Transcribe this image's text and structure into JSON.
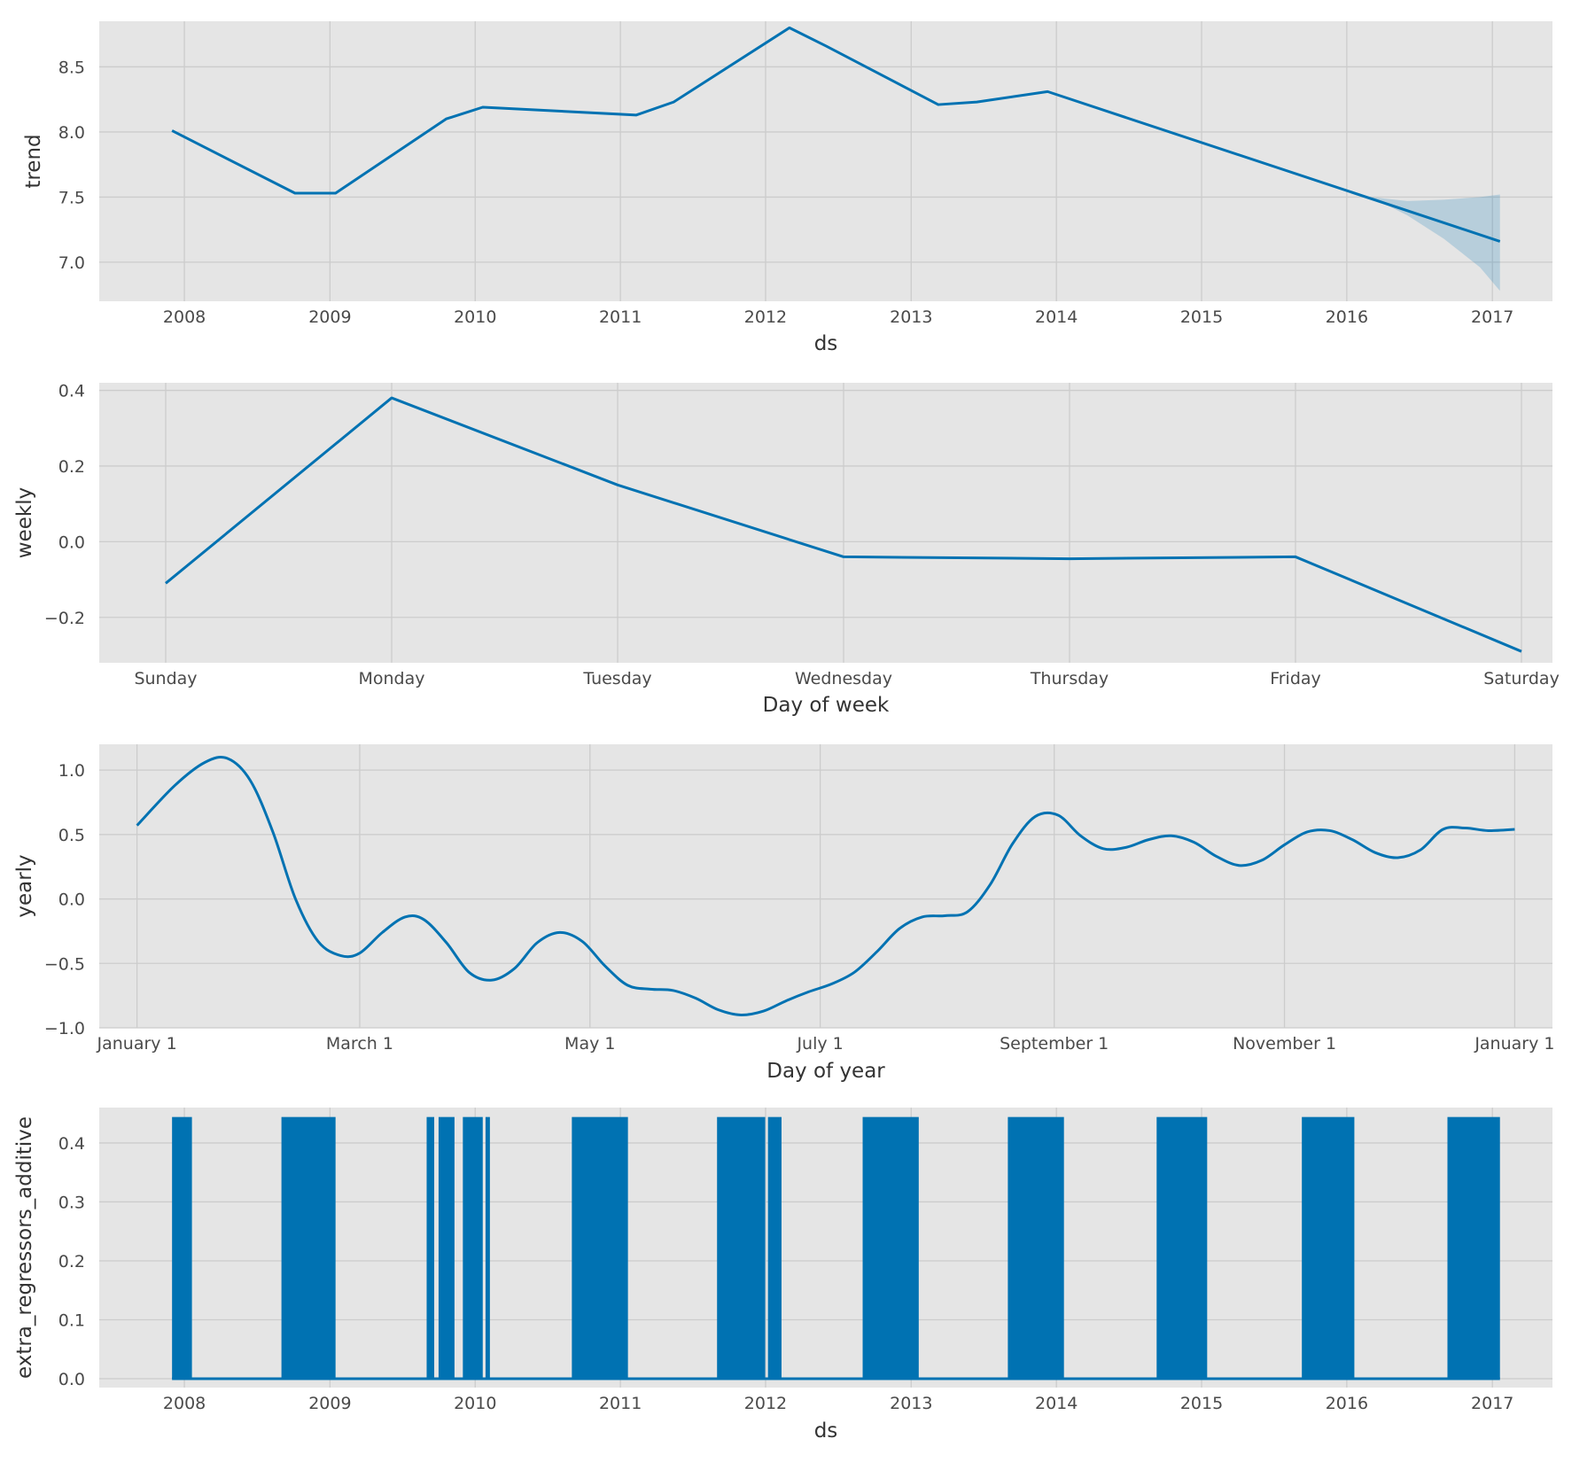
{
  "colors": {
    "panel_bg": "#e5e5e5",
    "grid": "#cccccc",
    "line": "#0072b2",
    "band": "#0072b2",
    "text": "#4a4a4a"
  },
  "chart_data": [
    {
      "type": "line",
      "xlabel": "ds",
      "ylabel": "trend",
      "x_axis": "date",
      "xlim": [
        "2007-06-01",
        "2017-06-01"
      ],
      "ylim": [
        6.7,
        8.85
      ],
      "xticks": [
        "2008",
        "2009",
        "2010",
        "2011",
        "2012",
        "2013",
        "2014",
        "2015",
        "2016",
        "2017"
      ],
      "yticks": [
        "7.0",
        "7.5",
        "8.0",
        "8.5"
      ],
      "grid": true,
      "series": [
        {
          "x": [
            "2007-12-01",
            "2008-10-05",
            "2009-01-15",
            "2009-10-20",
            "2010-01-20",
            "2011-02-10",
            "2011-05-15",
            "2012-03-01",
            "2012-06-01",
            "2013-03-10",
            "2013-06-15",
            "2013-12-10",
            "2017-01-20"
          ],
          "y": [
            8.01,
            7.53,
            7.53,
            8.1,
            8.19,
            8.13,
            8.23,
            8.8,
            8.66,
            8.21,
            8.23,
            8.31,
            7.16
          ]
        }
      ],
      "uncertainty": {
        "x": [
          "2016-03-01",
          "2016-06-01",
          "2016-09-01",
          "2016-12-01",
          "2017-01-20"
        ],
        "upper": [
          7.5,
          7.47,
          7.48,
          7.5,
          7.52
        ],
        "lower": [
          7.5,
          7.36,
          7.18,
          6.96,
          6.78
        ]
      }
    },
    {
      "type": "line",
      "xlabel": "Day of week",
      "ylabel": "weekly",
      "categories": [
        "Sunday",
        "Monday",
        "Tuesday",
        "Wednesday",
        "Thursday",
        "Friday",
        "Saturday"
      ],
      "ylim": [
        -0.32,
        0.42
      ],
      "yticks": [
        "−0.2",
        "0.0",
        "0.2",
        "0.4"
      ],
      "grid": true,
      "series": [
        {
          "values": [
            -0.11,
            0.38,
            0.15,
            -0.04,
            -0.045,
            -0.04,
            -0.29
          ]
        }
      ]
    },
    {
      "type": "line",
      "xlabel": "Day of year",
      "ylabel": "yearly",
      "x_axis": "day of year",
      "xlim": [
        -10,
        375
      ],
      "ylim": [
        -1.0,
        1.2
      ],
      "xticks": [
        {
          "day": 0,
          "label": "January 1"
        },
        {
          "day": 59,
          "label": "March 1"
        },
        {
          "day": 120,
          "label": "May 1"
        },
        {
          "day": 181,
          "label": "July 1"
        },
        {
          "day": 243,
          "label": "September 1"
        },
        {
          "day": 304,
          "label": "November 1"
        },
        {
          "day": 365,
          "label": "January 1"
        }
      ],
      "yticks": [
        "−1.0",
        "−0.5",
        "0.0",
        "0.5",
        "1.0"
      ],
      "grid": true,
      "series": [
        {
          "x": [
            0,
            10,
            18,
            24,
            30,
            36,
            42,
            48,
            54,
            59,
            65,
            71,
            76,
            82,
            88,
            94,
            100,
            106,
            112,
            118,
            124,
            130,
            136,
            142,
            148,
            154,
            160,
            166,
            172,
            178,
            184,
            190,
            196,
            202,
            208,
            214,
            220,
            226,
            232,
            238,
            244,
            250,
            256,
            262,
            268,
            274,
            280,
            286,
            292,
            298,
            304,
            310,
            316,
            322,
            328,
            334,
            340,
            346,
            352,
            358,
            365
          ],
          "y": [
            0.57,
            0.88,
            1.06,
            1.09,
            0.92,
            0.52,
            0.0,
            -0.33,
            -0.44,
            -0.42,
            -0.26,
            -0.14,
            -0.16,
            -0.34,
            -0.57,
            -0.63,
            -0.54,
            -0.34,
            -0.26,
            -0.33,
            -0.52,
            -0.67,
            -0.7,
            -0.71,
            -0.77,
            -0.86,
            -0.9,
            -0.87,
            -0.79,
            -0.72,
            -0.66,
            -0.57,
            -0.41,
            -0.23,
            -0.14,
            -0.13,
            -0.1,
            0.11,
            0.43,
            0.64,
            0.65,
            0.49,
            0.39,
            0.4,
            0.46,
            0.49,
            0.44,
            0.33,
            0.26,
            0.3,
            0.42,
            0.52,
            0.53,
            0.46,
            0.36,
            0.32,
            0.38,
            0.54,
            0.55,
            0.53,
            0.54
          ]
        }
      ]
    },
    {
      "type": "line",
      "xlabel": "ds",
      "ylabel": "extra_regressors_additive",
      "x_axis": "date",
      "xlim": [
        "2007-06-01",
        "2017-06-01"
      ],
      "ylim": [
        -0.015,
        0.46
      ],
      "xticks": [
        "2008",
        "2009",
        "2010",
        "2011",
        "2012",
        "2013",
        "2014",
        "2015",
        "2016",
        "2017"
      ],
      "yticks": [
        "0.0",
        "0.1",
        "0.2",
        "0.3",
        "0.4"
      ],
      "grid": true,
      "baseline": 0.0,
      "active_value": 0.444,
      "active_periods": [
        [
          "2007-12-01",
          "2008-01-20"
        ],
        [
          "2008-09-01",
          "2009-01-15"
        ],
        [
          "2009-09-01",
          "2009-09-20"
        ],
        [
          "2009-10-01",
          "2009-11-10"
        ],
        [
          "2009-12-01",
          "2010-01-20"
        ],
        [
          "2010-01-27",
          "2010-02-07"
        ],
        [
          "2010-09-01",
          "2011-01-20"
        ],
        [
          "2011-09-01",
          "2011-12-31"
        ],
        [
          "2012-01-07",
          "2012-02-10"
        ],
        [
          "2012-09-01",
          "2013-01-20"
        ],
        [
          "2013-09-01",
          "2014-01-20"
        ],
        [
          "2014-09-10",
          "2015-01-15"
        ],
        [
          "2015-09-10",
          "2016-01-20"
        ],
        [
          "2016-09-10",
          "2017-01-20"
        ]
      ]
    }
  ]
}
